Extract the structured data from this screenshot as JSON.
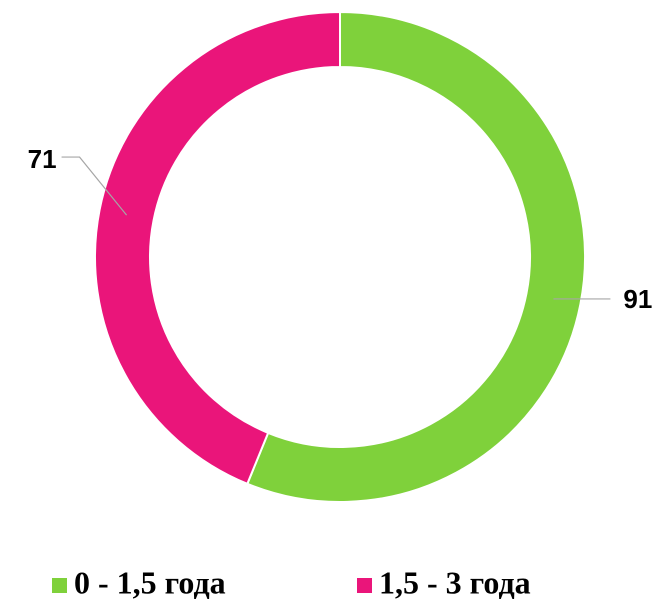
{
  "chart_data": {
    "type": "donut",
    "categories": [
      "0 - 1,5 года",
      "1,5 - 3 года"
    ],
    "values": [
      91,
      71
    ],
    "colors": [
      "#7fd13b",
      "#ea157a"
    ],
    "legend": "bottom"
  }
}
